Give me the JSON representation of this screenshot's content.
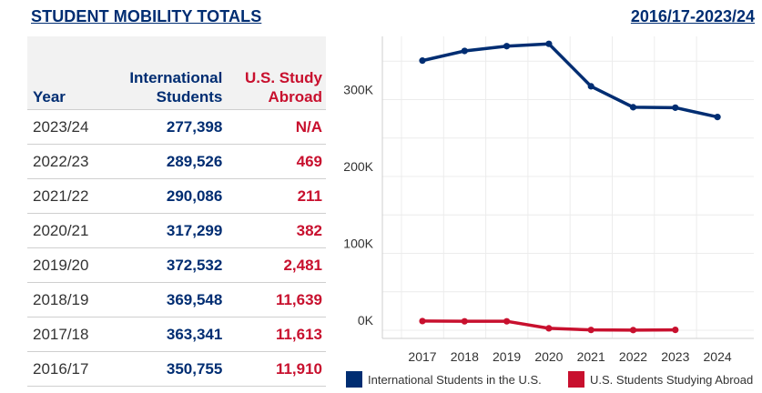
{
  "header": {
    "title": "STUDENT MOBILITY TOTALS",
    "range": "2016/17-2023/24"
  },
  "table": {
    "headers": {
      "year": "Year",
      "intl": "International Students",
      "abroad": "U.S. Study Abroad"
    },
    "rows": [
      {
        "year": "2023/24",
        "intl": "277,398",
        "abroad": "N/A"
      },
      {
        "year": "2022/23",
        "intl": "289,526",
        "abroad": "469"
      },
      {
        "year": "2021/22",
        "intl": "290,086",
        "abroad": "211"
      },
      {
        "year": "2020/21",
        "intl": "317,299",
        "abroad": "382"
      },
      {
        "year": "2019/20",
        "intl": "372,532",
        "abroad": "2,481"
      },
      {
        "year": "2018/19",
        "intl": "369,548",
        "abroad": "11,639"
      },
      {
        "year": "2017/18",
        "intl": "363,341",
        "abroad": "11,613"
      },
      {
        "year": "2016/17",
        "intl": "350,755",
        "abroad": "11,910"
      }
    ]
  },
  "chart_data": {
    "type": "line",
    "x": [
      2017,
      2018,
      2019,
      2020,
      2021,
      2022,
      2023,
      2024
    ],
    "ylim": [
      0,
      390000
    ],
    "yticks": [
      0,
      100000,
      200000,
      300000
    ],
    "ytick_labels": [
      "0K",
      "100K",
      "200K",
      "300K"
    ],
    "grid": true,
    "legend_position": "bottom",
    "series": [
      {
        "name": "International Students in the U.S.",
        "color": "#002d72",
        "values": [
          350755,
          363341,
          369548,
          372532,
          317299,
          290086,
          289526,
          277398
        ]
      },
      {
        "name": "U.S. Students Studying Abroad",
        "color": "#c8102e",
        "values": [
          11910,
          11613,
          11639,
          2481,
          382,
          211,
          469,
          null
        ]
      }
    ]
  }
}
